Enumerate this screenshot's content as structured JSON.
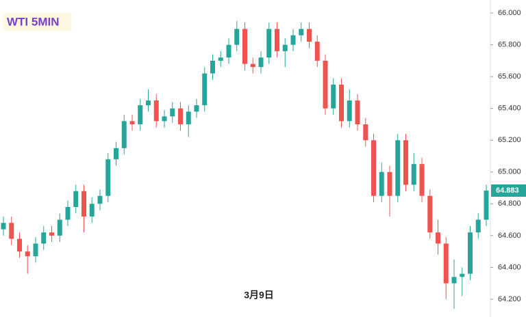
{
  "chart_data": {
    "type": "candlestick",
    "title": "WTI 5MIN",
    "annotation": "3月9日",
    "open": [
      64.64,
      64.68,
      64.58,
      64.5,
      64.47,
      64.55,
      64.62,
      64.6,
      64.7,
      64.78,
      64.88,
      64.72,
      64.8,
      64.85,
      65.08,
      65.15,
      65.32,
      65.3,
      65.42,
      65.45,
      65.32,
      65.35,
      65.4,
      65.3,
      65.38,
      65.42,
      65.62,
      65.7,
      65.72,
      65.8,
      65.9,
      65.68,
      65.66,
      65.72,
      65.9,
      65.76,
      65.8,
      65.86,
      65.9,
      65.82,
      65.7,
      65.4,
      65.55,
      65.32,
      65.45,
      65.3,
      65.2,
      64.85,
      65.0,
      64.85,
      65.2,
      64.92,
      65.05,
      64.85,
      64.62,
      64.55,
      64.3,
      64.34,
      64.36,
      64.62,
      64.7
    ],
    "high": [
      64.72,
      64.72,
      64.62,
      64.54,
      64.59,
      64.66,
      64.66,
      64.74,
      64.82,
      64.92,
      64.92,
      64.84,
      64.89,
      65.12,
      65.19,
      65.36,
      65.36,
      65.46,
      65.52,
      65.49,
      65.39,
      65.44,
      65.44,
      65.42,
      65.46,
      65.66,
      65.74,
      65.76,
      65.84,
      65.95,
      65.94,
      65.72,
      65.76,
      65.94,
      65.94,
      65.84,
      65.9,
      65.94,
      65.94,
      65.86,
      65.74,
      65.59,
      65.59,
      65.52,
      65.49,
      65.34,
      65.24,
      65.06,
      65.04,
      65.24,
      65.24,
      65.12,
      65.09,
      64.89,
      64.7,
      64.59,
      64.45,
      64.4,
      64.66,
      64.74,
      64.92
    ],
    "low": [
      64.6,
      64.54,
      64.46,
      64.36,
      64.43,
      64.51,
      64.56,
      64.56,
      64.66,
      64.74,
      64.62,
      64.68,
      64.76,
      64.81,
      65.04,
      65.11,
      65.26,
      65.26,
      65.38,
      65.28,
      65.28,
      65.31,
      65.26,
      65.22,
      65.34,
      65.38,
      65.58,
      65.66,
      65.68,
      65.76,
      65.64,
      65.62,
      65.62,
      65.68,
      65.72,
      65.66,
      65.76,
      65.82,
      65.78,
      65.66,
      65.36,
      65.36,
      65.28,
      65.28,
      65.26,
      65.16,
      64.81,
      64.81,
      64.72,
      64.81,
      64.88,
      64.88,
      64.81,
      64.58,
      64.48,
      64.2,
      64.14,
      64.22,
      64.32,
      64.58,
      64.66
    ],
    "close": [
      64.68,
      64.58,
      64.5,
      64.47,
      64.55,
      64.62,
      64.6,
      64.7,
      64.78,
      64.88,
      64.72,
      64.8,
      64.85,
      65.08,
      65.15,
      65.32,
      65.3,
      65.42,
      65.45,
      65.32,
      65.35,
      65.4,
      65.3,
      65.38,
      65.42,
      65.62,
      65.7,
      65.72,
      65.8,
      65.9,
      65.68,
      65.66,
      65.72,
      65.9,
      65.76,
      65.8,
      65.86,
      65.9,
      65.82,
      65.7,
      65.4,
      65.55,
      65.32,
      65.45,
      65.3,
      65.2,
      64.85,
      65.0,
      64.85,
      65.2,
      64.92,
      65.05,
      64.85,
      64.62,
      64.55,
      64.3,
      64.34,
      64.36,
      64.62,
      64.7,
      64.883
    ],
    "up_color": "#26a69a",
    "down_color": "#ef5350",
    "ylim": [
      64.088,
      66.082
    ],
    "yticks": [
      {
        "value": 64.2,
        "label": "64.200"
      },
      {
        "value": 64.4,
        "label": "64.400"
      },
      {
        "value": 64.6,
        "label": "64.600"
      },
      {
        "value": 64.8,
        "label": "64.800"
      },
      {
        "value": 65.0,
        "label": "65.000"
      },
      {
        "value": 65.2,
        "label": "65.200"
      },
      {
        "value": 65.4,
        "label": "65.400"
      },
      {
        "value": 65.6,
        "label": "65.600"
      },
      {
        "value": 65.8,
        "label": "65.800"
      },
      {
        "value": 66.0,
        "label": "66.000"
      }
    ],
    "last_price": 64.883
  }
}
